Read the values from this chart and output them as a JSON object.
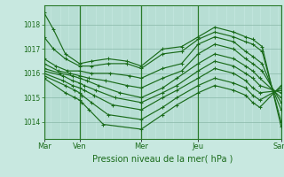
{
  "xlabel": "Pression niveau de la mer( hPa )",
  "background_color": "#c8e8e0",
  "plot_bg_color": "#c0e4dc",
  "line_color": "#1a6b1a",
  "grid_minor_color": "#98c8b8",
  "grid_major_color": "#88b8a8",
  "day_line_color": "#2a7a2a",
  "yticks": [
    1014,
    1015,
    1016,
    1017,
    1018
  ],
  "ylim": [
    1013.3,
    1018.8
  ],
  "xlim": [
    0.0,
    1.0
  ],
  "xtick_labels": [
    "Mar",
    "Ven",
    "Mer",
    "Jeu",
    "Sam"
  ],
  "xtick_positions": [
    0.0,
    0.15,
    0.41,
    0.65,
    1.0
  ],
  "day_lines": [
    0.0,
    0.15,
    0.41,
    0.65,
    1.0
  ],
  "series": [
    {
      "x": [
        0.0,
        0.04,
        0.09,
        0.15,
        0.2,
        0.27,
        0.35,
        0.41,
        0.5,
        0.58,
        0.65,
        0.72,
        0.8,
        0.85,
        0.88,
        0.92,
        1.0
      ],
      "y": [
        1018.5,
        1017.8,
        1016.8,
        1016.4,
        1016.5,
        1016.6,
        1016.5,
        1016.3,
        1017.0,
        1017.1,
        1017.5,
        1017.9,
        1017.7,
        1017.5,
        1017.4,
        1017.1,
        1013.8
      ]
    },
    {
      "x": [
        0.0,
        0.04,
        0.09,
        0.15,
        0.2,
        0.27,
        0.35,
        0.41,
        0.5,
        0.58,
        0.65,
        0.72,
        0.8,
        0.85,
        0.88,
        0.92,
        1.0
      ],
      "y": [
        1017.5,
        1017.0,
        1016.6,
        1016.3,
        1016.3,
        1016.4,
        1016.4,
        1016.2,
        1016.8,
        1016.9,
        1017.4,
        1017.7,
        1017.5,
        1017.3,
        1017.2,
        1016.9,
        1014.0
      ]
    },
    {
      "x": [
        0.0,
        0.05,
        0.1,
        0.15,
        0.2,
        0.28,
        0.36,
        0.41,
        0.5,
        0.58,
        0.65,
        0.72,
        0.8,
        0.85,
        0.88,
        0.92,
        1.0
      ],
      "y": [
        1016.6,
        1016.3,
        1016.1,
        1016.1,
        1016.0,
        1016.0,
        1015.9,
        1015.8,
        1016.2,
        1016.4,
        1017.2,
        1017.5,
        1017.3,
        1016.9,
        1016.7,
        1016.4,
        1014.5
      ]
    },
    {
      "x": [
        0.0,
        0.06,
        0.11,
        0.15,
        0.19,
        0.26,
        0.35,
        0.41,
        0.5,
        0.58,
        0.65,
        0.72,
        0.8,
        0.85,
        0.88,
        0.92,
        1.0
      ],
      "y": [
        1016.4,
        1016.1,
        1016.0,
        1015.9,
        1015.8,
        1015.7,
        1015.5,
        1015.4,
        1015.8,
        1016.1,
        1016.8,
        1017.2,
        1017.0,
        1016.6,
        1016.4,
        1016.1,
        1014.8
      ]
    },
    {
      "x": [
        0.0,
        0.07,
        0.12,
        0.15,
        0.18,
        0.23,
        0.32,
        0.41,
        0.5,
        0.56,
        0.65,
        0.72,
        0.8,
        0.85,
        0.88,
        0.91,
        1.0
      ],
      "y": [
        1016.2,
        1016.0,
        1015.9,
        1015.8,
        1015.7,
        1015.5,
        1015.2,
        1015.0,
        1015.4,
        1015.8,
        1016.4,
        1016.8,
        1016.6,
        1016.3,
        1016.1,
        1015.8,
        1015.0
      ]
    },
    {
      "x": [
        0.0,
        0.08,
        0.12,
        0.15,
        0.17,
        0.22,
        0.3,
        0.41,
        0.5,
        0.56,
        0.65,
        0.72,
        0.8,
        0.85,
        0.88,
        0.91,
        1.0
      ],
      "y": [
        1016.1,
        1015.9,
        1015.7,
        1015.6,
        1015.5,
        1015.3,
        1015.0,
        1014.8,
        1015.2,
        1015.5,
        1016.1,
        1016.5,
        1016.3,
        1016.0,
        1015.8,
        1015.5,
        1015.2
      ]
    },
    {
      "x": [
        0.0,
        0.08,
        0.12,
        0.15,
        0.17,
        0.21,
        0.29,
        0.41,
        0.5,
        0.56,
        0.65,
        0.72,
        0.8,
        0.85,
        0.88,
        0.91,
        1.0
      ],
      "y": [
        1016.0,
        1015.7,
        1015.5,
        1015.4,
        1015.3,
        1015.1,
        1014.7,
        1014.5,
        1015.0,
        1015.3,
        1015.8,
        1016.2,
        1016.0,
        1015.7,
        1015.4,
        1015.2,
        1015.3
      ]
    },
    {
      "x": [
        0.0,
        0.09,
        0.13,
        0.15,
        0.16,
        0.2,
        0.27,
        0.41,
        0.5,
        0.56,
        0.65,
        0.72,
        0.8,
        0.85,
        0.88,
        0.91,
        1.0
      ],
      "y": [
        1015.9,
        1015.5,
        1015.3,
        1015.2,
        1015.1,
        1014.8,
        1014.3,
        1014.1,
        1014.6,
        1015.0,
        1015.5,
        1015.8,
        1015.6,
        1015.4,
        1015.1,
        1014.9,
        1015.4
      ]
    },
    {
      "x": [
        0.0,
        0.09,
        0.13,
        0.15,
        0.16,
        0.19,
        0.25,
        0.41,
        0.5,
        0.56,
        0.65,
        0.72,
        0.8,
        0.85,
        0.88,
        0.91,
        1.0
      ],
      "y": [
        1015.8,
        1015.2,
        1015.0,
        1014.9,
        1014.8,
        1014.5,
        1013.9,
        1013.7,
        1014.3,
        1014.7,
        1015.2,
        1015.5,
        1015.3,
        1015.1,
        1014.8,
        1014.6,
        1015.5
      ]
    }
  ]
}
